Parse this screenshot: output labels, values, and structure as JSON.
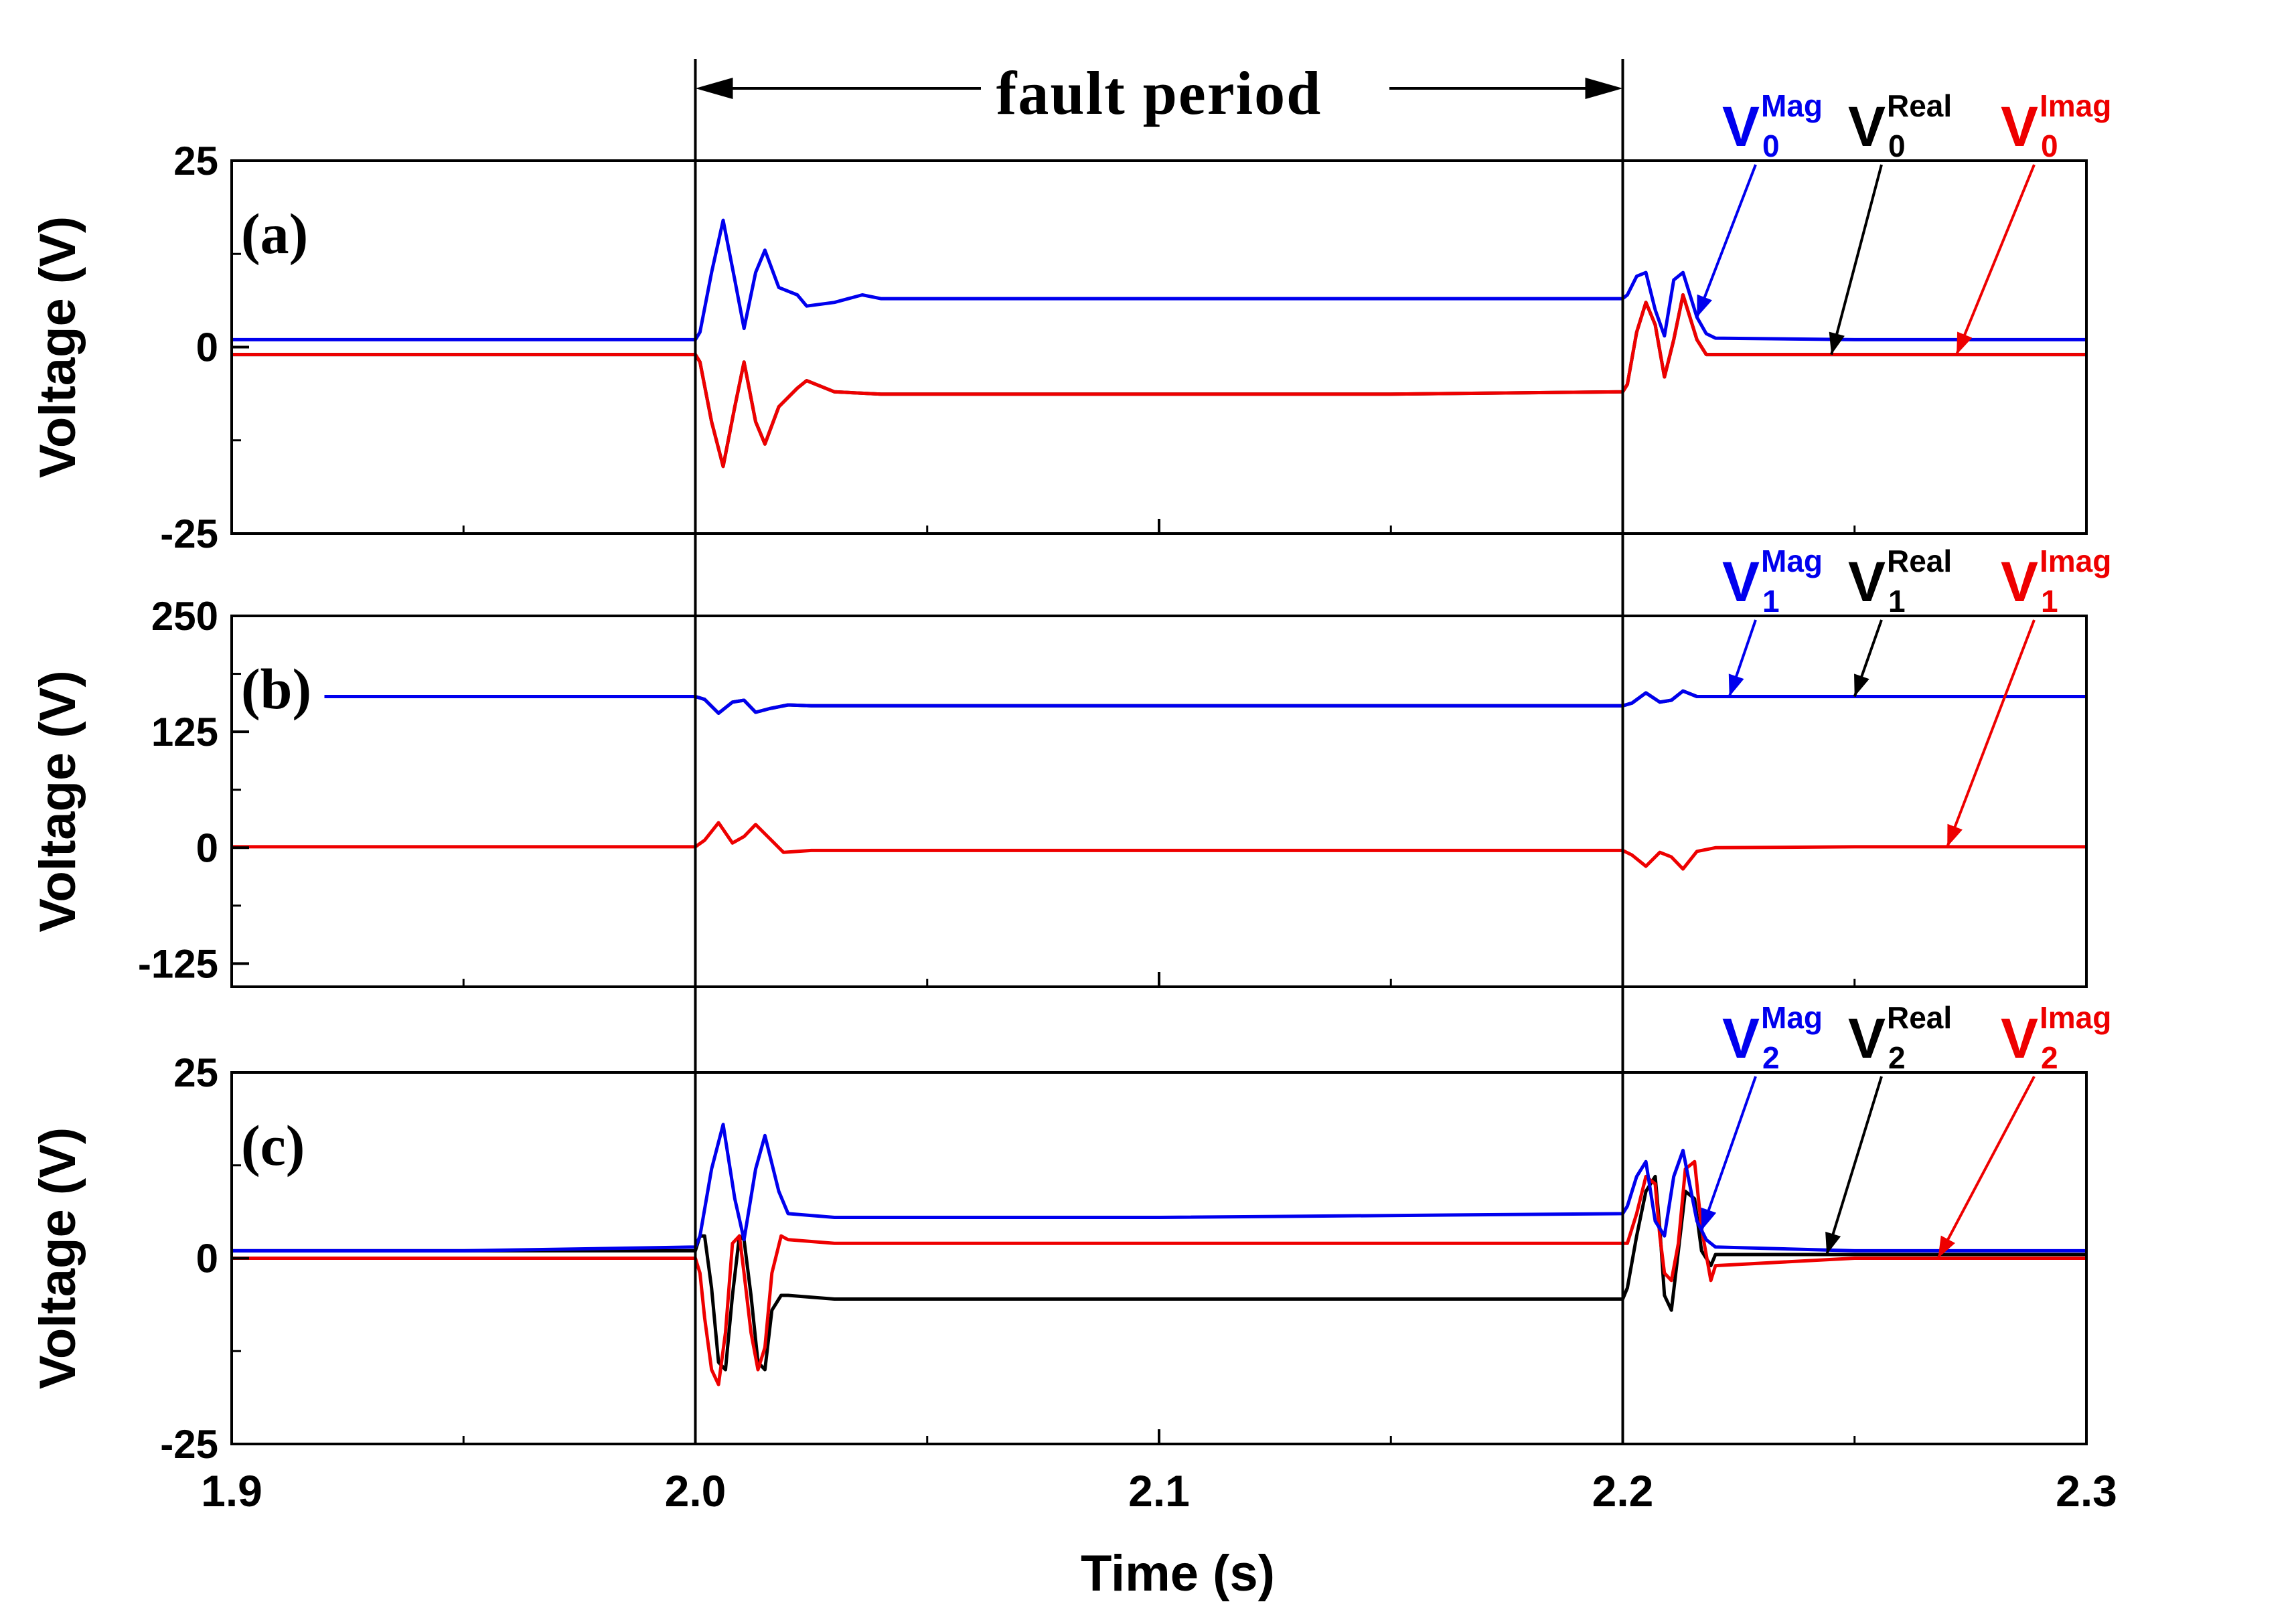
{
  "fault_annotation": {
    "label": "fault period",
    "start": 2.0,
    "end": 2.2
  },
  "colors": {
    "mag": "#0000ee",
    "real": "#000000",
    "imag": "#ee0000"
  },
  "x_axis": {
    "label": "Time (s)",
    "range": [
      1.9,
      2.3
    ],
    "ticks": [
      1.9,
      2.0,
      2.1,
      2.2,
      2.3
    ],
    "tick_labels": [
      "1.9",
      "2.0",
      "2.1",
      "2.2",
      "2.3"
    ]
  },
  "legend_parts": {
    "main": "V",
    "mag_sup": "Mag",
    "real_sup": "Real",
    "imag_sup": "Imag"
  },
  "chart_data": [
    {
      "panel": "(a)",
      "type": "line",
      "ylabel": "Voltage (V)",
      "ylim": [
        -25,
        25
      ],
      "yticks": [
        -25,
        0,
        25
      ],
      "ytick_labels": [
        "-25",
        "0",
        "25"
      ],
      "sequence_index": "0",
      "legend_pointers": {
        "mag": 2.216,
        "real": 2.245,
        "imag": 2.272
      },
      "series": [
        {
          "key": "mag",
          "color": "#0000ee",
          "x": [
            1.9,
            1.95,
            2.0,
            2.001,
            2.0035,
            2.006,
            2.0085,
            2.0105,
            2.013,
            2.015,
            2.018,
            2.022,
            2.024,
            2.03,
            2.036,
            2.04,
            2.06,
            2.1,
            2.15,
            2.2,
            2.201,
            2.203,
            2.205,
            2.207,
            2.209,
            2.211,
            2.213,
            2.216,
            2.218,
            2.22,
            2.25,
            2.3
          ],
          "y": [
            1,
            1,
            1,
            2,
            10,
            17,
            9,
            2.5,
            10,
            13,
            8,
            7,
            5.5,
            6,
            7,
            6.5,
            6.5,
            6.5,
            6.5,
            6.5,
            7,
            9.5,
            10,
            5,
            1.5,
            9,
            10,
            4,
            1.8,
            1.2,
            1,
            1
          ]
        },
        {
          "key": "real",
          "color": "#000000",
          "x": [
            1.9,
            1.95,
            2.0,
            2.001,
            2.0035,
            2.006,
            2.0085,
            2.0105,
            2.013,
            2.015,
            2.018,
            2.022,
            2.024,
            2.03,
            2.04,
            2.06,
            2.1,
            2.15,
            2.2,
            2.201,
            2.203,
            2.205,
            2.207,
            2.209,
            2.211,
            2.213,
            2.216,
            2.218,
            2.22,
            2.25,
            2.3
          ],
          "y": [
            -1,
            -1,
            -1,
            -2,
            -10,
            -16,
            -8,
            -2,
            -10,
            -13,
            -8,
            -5.5,
            -4.5,
            -6,
            -6.3,
            -6.3,
            -6.3,
            -6.3,
            -6,
            -5,
            2,
            6,
            3,
            -4,
            1,
            7,
            1,
            -1,
            -1,
            -1,
            -1
          ]
        },
        {
          "key": "imag",
          "color": "#ee0000",
          "x": [
            1.9,
            1.95,
            2.0,
            2.001,
            2.0035,
            2.006,
            2.0085,
            2.0105,
            2.013,
            2.015,
            2.018,
            2.022,
            2.024,
            2.03,
            2.04,
            2.06,
            2.1,
            2.15,
            2.2,
            2.201,
            2.203,
            2.205,
            2.207,
            2.209,
            2.211,
            2.213,
            2.216,
            2.218,
            2.22,
            2.25,
            2.3
          ],
          "y": [
            -1,
            -1,
            -1,
            -2,
            -10,
            -16,
            -8,
            -2,
            -10,
            -13,
            -8,
            -5.5,
            -4.5,
            -6,
            -6.3,
            -6.3,
            -6.3,
            -6.3,
            -6,
            -5,
            2,
            6,
            3,
            -4,
            1,
            7,
            1,
            -1,
            -1,
            -1,
            -1
          ]
        }
      ]
    },
    {
      "panel": "(b)",
      "type": "line",
      "ylabel": "Voltage (V)",
      "ylim": [
        -150,
        250
      ],
      "yticks": [
        -125,
        0,
        125,
        250
      ],
      "ytick_labels": [
        "-125",
        "0",
        "125",
        "250"
      ],
      "sequence_index": "1",
      "legend_pointers": {
        "mag": 2.223,
        "real": 2.25,
        "imag": 2.27
      },
      "series": [
        {
          "key": "mag",
          "color": "#0000ee",
          "x": [
            1.92,
            1.95,
            2.0,
            2.002,
            2.005,
            2.008,
            2.0105,
            2.013,
            2.016,
            2.02,
            2.025,
            2.05,
            2.1,
            2.15,
            2.2,
            2.202,
            2.205,
            2.208,
            2.2105,
            2.213,
            2.216,
            2.22,
            2.25,
            2.3
          ],
          "y": [
            163,
            163,
            163,
            160,
            145,
            157,
            159,
            146,
            150,
            154,
            153,
            153,
            153,
            153,
            153,
            156,
            167,
            157,
            159,
            169,
            163,
            163,
            163,
            163
          ]
        },
        {
          "key": "real",
          "color": "#000000",
          "x": [
            1.92,
            1.95,
            2.0,
            2.002,
            2.005,
            2.008,
            2.0105,
            2.013,
            2.016,
            2.02,
            2.025,
            2.05,
            2.1,
            2.15,
            2.2,
            2.202,
            2.205,
            2.208,
            2.2105,
            2.213,
            2.216,
            2.22,
            2.25,
            2.3
          ],
          "y": [
            163,
            163,
            163,
            160,
            145,
            157,
            159,
            146,
            150,
            154,
            153,
            153,
            153,
            153,
            153,
            156,
            167,
            157,
            159,
            169,
            163,
            163,
            163,
            163
          ]
        },
        {
          "key": "imag",
          "color": "#ee0000",
          "x": [
            1.9,
            1.95,
            2.0,
            2.002,
            2.005,
            2.008,
            2.0105,
            2.013,
            2.016,
            2.019,
            2.025,
            2.05,
            2.1,
            2.15,
            2.2,
            2.202,
            2.205,
            2.208,
            2.2105,
            2.213,
            2.216,
            2.22,
            2.25,
            2.3
          ],
          "y": [
            1,
            1,
            1,
            8,
            27,
            5,
            12,
            25,
            10,
            -5,
            -3,
            -3,
            -3,
            -3,
            -3,
            -8,
            -20,
            -5,
            -10,
            -23,
            -4,
            0,
            1,
            1
          ]
        }
      ]
    },
    {
      "panel": "(c)",
      "type": "line",
      "ylabel": "Voltage (V)",
      "ylim": [
        -25,
        25
      ],
      "yticks": [
        -25,
        0,
        25
      ],
      "ytick_labels": [
        "-25",
        "0",
        "25"
      ],
      "sequence_index": "2",
      "legend_pointers": {
        "mag": 2.217,
        "real": 2.244,
        "imag": 2.268
      },
      "series": [
        {
          "key": "mag",
          "color": "#0000ee",
          "x": [
            1.9,
            1.95,
            2.0,
            2.001,
            2.0035,
            2.006,
            2.0085,
            2.0105,
            2.013,
            2.015,
            2.018,
            2.02,
            2.03,
            2.1,
            2.2,
            2.201,
            2.203,
            2.205,
            2.207,
            2.209,
            2.211,
            2.213,
            2.216,
            2.218,
            2.22,
            2.25,
            2.3
          ],
          "y": [
            1,
            1,
            1.5,
            3,
            12,
            18,
            8,
            2.5,
            12,
            16.5,
            9,
            6,
            5.5,
            5.5,
            6,
            7,
            11,
            13,
            5,
            3,
            11,
            14.5,
            5,
            2.5,
            1.5,
            1,
            1
          ]
        },
        {
          "key": "real",
          "color": "#000000",
          "x": [
            1.9,
            1.95,
            2.0,
            2.001,
            2.002,
            2.0035,
            2.005,
            2.0065,
            2.008,
            2.0095,
            2.0105,
            2.012,
            2.0135,
            2.015,
            2.0165,
            2.0185,
            2.02,
            2.03,
            2.1,
            2.2,
            2.201,
            2.203,
            2.205,
            2.207,
            2.208,
            2.209,
            2.2105,
            2.212,
            2.2135,
            2.2155,
            2.217,
            2.219,
            2.22,
            2.25,
            2.3
          ],
          "y": [
            1,
            1,
            1,
            3,
            3,
            -4,
            -14,
            -15,
            -5,
            3,
            2.5,
            -5,
            -14,
            -15,
            -7,
            -5,
            -5,
            -5.5,
            -5.5,
            -5.5,
            -4,
            3,
            9,
            11,
            4,
            -5,
            -7,
            1,
            9,
            8,
            1,
            -1,
            0.5,
            0.5,
            0.5
          ]
        },
        {
          "key": "imag",
          "color": "#ee0000",
          "x": [
            1.9,
            1.95,
            2.0,
            2.001,
            2.002,
            2.0035,
            2.005,
            2.0065,
            2.008,
            2.0095,
            2.0105,
            2.012,
            2.0135,
            2.015,
            2.0165,
            2.0185,
            2.02,
            2.03,
            2.1,
            2.2,
            2.201,
            2.203,
            2.205,
            2.207,
            2.208,
            2.209,
            2.2105,
            2.212,
            2.2135,
            2.2155,
            2.217,
            2.219,
            2.22,
            2.25,
            2.3
          ],
          "y": [
            0,
            0,
            0,
            -2,
            -8,
            -15,
            -17,
            -10,
            2,
            3,
            -2,
            -10,
            -15,
            -12,
            -2,
            3,
            2.5,
            2,
            2,
            2,
            2,
            6,
            11,
            10,
            3,
            -2,
            -3,
            2,
            12,
            13,
            4,
            -3,
            -1,
            0,
            0
          ]
        }
      ]
    }
  ]
}
